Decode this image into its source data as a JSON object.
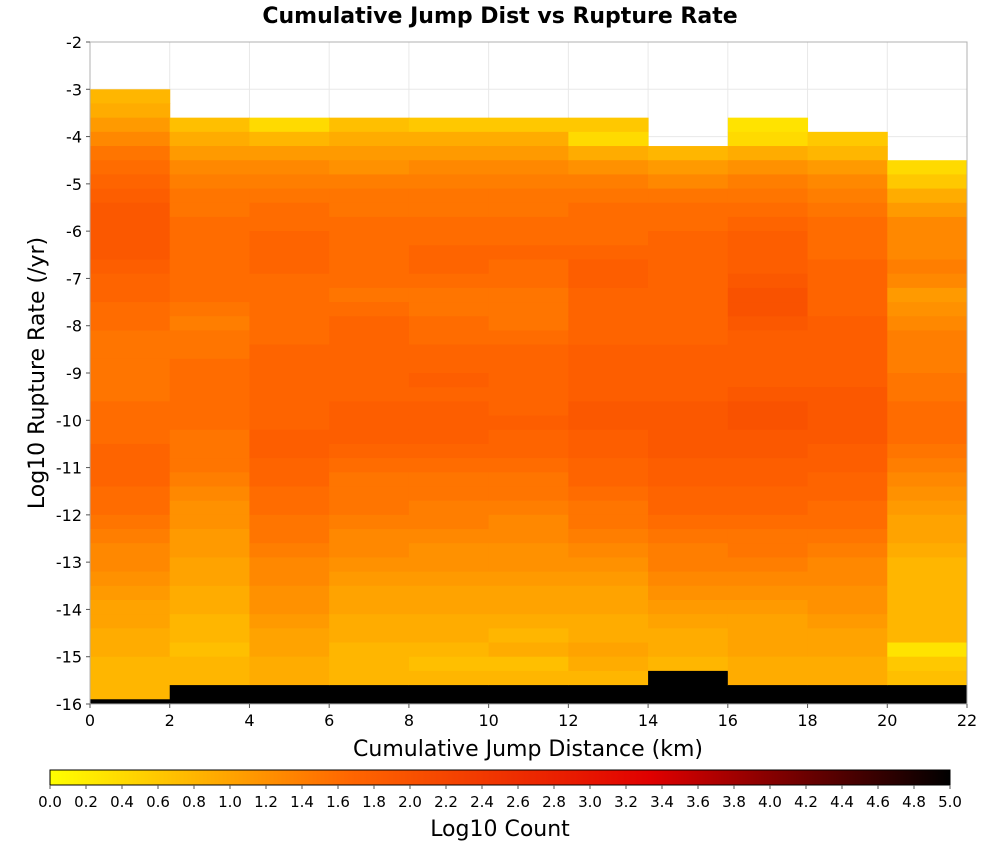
{
  "chart_data": {
    "type": "heatmap",
    "title": "Cumulative Jump Dist vs Rupture Rate",
    "xlabel": "Cumulative Jump Distance (km)",
    "ylabel": "Log10 Rupture Rate (/yr)",
    "xlim": [
      0,
      22
    ],
    "ylim": [
      -16,
      -2
    ],
    "x_ticks": [
      "0",
      "2",
      "4",
      "6",
      "8",
      "10",
      "12",
      "14",
      "16",
      "18",
      "20",
      "22"
    ],
    "y_ticks": [
      "-2",
      "-3",
      "-4",
      "-5",
      "-6",
      "-7",
      "-8",
      "-9",
      "-10",
      "-11",
      "-12",
      "-13",
      "-14",
      "-15",
      "-16"
    ],
    "grid": true,
    "x_bin_edges": [
      0,
      2,
      4,
      6,
      8,
      10,
      12,
      14,
      16,
      18,
      20,
      22
    ],
    "y_bin_width": 0.3,
    "colorbar": {
      "label": "Log10 Count",
      "range": [
        0,
        5
      ],
      "ticks": [
        "0.0",
        "0.2",
        "0.4",
        "0.6",
        "0.8",
        "1.0",
        "1.2",
        "1.4",
        "1.6",
        "1.8",
        "2.0",
        "2.2",
        "2.4",
        "2.6",
        "2.8",
        "3.0",
        "3.2",
        "3.4",
        "3.6",
        "3.8",
        "4.0",
        "4.2",
        "4.4",
        "4.6",
        "4.8",
        "5.0"
      ],
      "colormap": [
        "#ffff00",
        "#ff6600",
        "#e00000",
        "#000000"
      ]
    },
    "columns": [
      {
        "x_start": 0,
        "y_top": -3.0,
        "values": [
          0.8,
          0.9,
          1.1,
          1.3,
          1.5,
          1.6,
          1.7,
          1.8,
          1.9,
          1.9,
          1.9,
          1.9,
          1.8,
          1.7,
          1.7,
          1.6,
          1.6,
          1.5,
          1.5,
          1.5,
          1.5,
          1.5,
          1.6,
          1.6,
          1.6,
          1.7,
          1.7,
          1.7,
          1.6,
          1.6,
          1.5,
          1.4,
          1.3,
          1.3,
          1.2,
          1.1,
          1.0,
          1.0,
          0.9,
          0.9,
          0.8,
          0.8,
          0.8,
          5.0
        ]
      },
      {
        "x_start": 2,
        "y_top": -3.6,
        "values": [
          0.7,
          0.9,
          1.1,
          1.3,
          1.4,
          1.5,
          1.5,
          1.6,
          1.6,
          1.6,
          1.6,
          1.6,
          1.6,
          1.5,
          1.4,
          1.5,
          1.5,
          1.6,
          1.6,
          1.6,
          1.6,
          1.6,
          1.5,
          1.5,
          1.5,
          1.4,
          1.3,
          1.2,
          1.2,
          1.1,
          1.1,
          1.0,
          1.0,
          0.9,
          0.9,
          0.8,
          0.8,
          0.7,
          0.8,
          0.8,
          5.0
        ]
      },
      {
        "x_start": 4,
        "y_top": -3.6,
        "values": [
          0.4,
          0.8,
          1.1,
          1.3,
          1.4,
          1.5,
          1.6,
          1.6,
          1.7,
          1.7,
          1.7,
          1.6,
          1.6,
          1.6,
          1.6,
          1.6,
          1.7,
          1.7,
          1.7,
          1.7,
          1.7,
          1.7,
          1.8,
          1.8,
          1.7,
          1.7,
          1.6,
          1.6,
          1.5,
          1.5,
          1.4,
          1.3,
          1.3,
          1.2,
          1.2,
          1.1,
          1.0,
          1.0,
          0.9,
          0.9,
          5.0
        ]
      },
      {
        "x_start": 6,
        "y_top": -3.6,
        "values": [
          0.7,
          0.9,
          1.1,
          1.2,
          1.4,
          1.5,
          1.5,
          1.6,
          1.6,
          1.6,
          1.6,
          1.6,
          1.5,
          1.6,
          1.7,
          1.7,
          1.7,
          1.7,
          1.7,
          1.7,
          1.8,
          1.8,
          1.8,
          1.7,
          1.6,
          1.5,
          1.5,
          1.5,
          1.4,
          1.3,
          1.3,
          1.2,
          1.1,
          1.0,
          1.0,
          0.9,
          0.9,
          0.8,
          0.8,
          0.8,
          5.0
        ]
      },
      {
        "x_start": 8,
        "y_top": -3.6,
        "values": [
          0.6,
          0.9,
          1.1,
          1.3,
          1.4,
          1.5,
          1.5,
          1.6,
          1.6,
          1.7,
          1.7,
          1.6,
          1.5,
          1.5,
          1.6,
          1.6,
          1.7,
          1.7,
          1.8,
          1.7,
          1.8,
          1.8,
          1.8,
          1.7,
          1.6,
          1.5,
          1.5,
          1.4,
          1.4,
          1.3,
          1.2,
          1.2,
          1.1,
          1.0,
          1.0,
          0.9,
          0.9,
          0.8,
          0.7,
          0.8,
          5.0
        ]
      },
      {
        "x_start": 10,
        "y_top": -3.6,
        "values": [
          0.6,
          0.9,
          1.1,
          1.3,
          1.4,
          1.5,
          1.5,
          1.6,
          1.6,
          1.7,
          1.6,
          1.6,
          1.5,
          1.5,
          1.5,
          1.6,
          1.7,
          1.7,
          1.7,
          1.7,
          1.7,
          1.8,
          1.7,
          1.7,
          1.6,
          1.5,
          1.5,
          1.4,
          1.3,
          1.3,
          1.2,
          1.2,
          1.1,
          1.0,
          1.0,
          0.9,
          0.8,
          0.9,
          0.7,
          0.8,
          5.0
        ]
      },
      {
        "x_start": 12,
        "y_top": -3.6,
        "values": [
          0.6,
          0.4,
          0.9,
          1.2,
          1.4,
          1.5,
          1.6,
          1.6,
          1.6,
          1.7,
          1.8,
          1.8,
          1.7,
          1.7,
          1.7,
          1.7,
          1.8,
          1.8,
          1.8,
          1.8,
          1.9,
          1.9,
          1.8,
          1.8,
          1.7,
          1.7,
          1.6,
          1.5,
          1.5,
          1.4,
          1.3,
          1.2,
          1.1,
          1.0,
          1.0,
          0.9,
          0.9,
          1.0,
          0.9,
          0.8,
          5.0
        ]
      },
      {
        "x_start": 14,
        "y_top": -4.2,
        "values": [
          0.8,
          1.1,
          1.3,
          1.5,
          1.6,
          1.6,
          1.7,
          1.7,
          1.7,
          1.7,
          1.7,
          1.7,
          1.7,
          1.7,
          1.8,
          1.8,
          1.8,
          1.8,
          1.9,
          1.9,
          1.9,
          1.9,
          1.8,
          1.8,
          1.7,
          1.7,
          1.6,
          1.5,
          1.4,
          1.4,
          1.3,
          1.2,
          1.1,
          1.0,
          0.9,
          0.9,
          0.8,
          5.0
        ]
      },
      {
        "x_start": 16,
        "y_top": -3.6,
        "values": [
          0.3,
          0.4,
          0.9,
          1.2,
          1.4,
          1.5,
          1.6,
          1.7,
          1.8,
          1.8,
          1.8,
          1.9,
          2.0,
          2.0,
          1.9,
          1.8,
          1.8,
          1.8,
          1.8,
          1.9,
          2.0,
          2.0,
          1.9,
          1.9,
          1.8,
          1.8,
          1.7,
          1.7,
          1.6,
          1.5,
          1.5,
          1.4,
          1.3,
          1.2,
          1.1,
          1.0,
          1.0,
          1.0,
          0.9,
          0.9,
          5.0
        ]
      },
      {
        "x_start": 18,
        "y_top": -3.9,
        "values": [
          0.6,
          0.8,
          1.1,
          1.3,
          1.4,
          1.5,
          1.6,
          1.6,
          1.6,
          1.7,
          1.7,
          1.7,
          1.7,
          1.8,
          1.8,
          1.8,
          1.8,
          1.8,
          1.9,
          1.9,
          1.9,
          1.9,
          1.8,
          1.8,
          1.7,
          1.7,
          1.6,
          1.6,
          1.5,
          1.4,
          1.3,
          1.3,
          1.2,
          1.2,
          1.1,
          1.0,
          1.0,
          0.9,
          0.9,
          5.0
        ]
      },
      {
        "x_start": 20,
        "y_top": -4.5,
        "values": [
          0.4,
          0.6,
          0.9,
          1.1,
          1.3,
          1.3,
          1.3,
          1.4,
          1.3,
          1.1,
          1.2,
          1.3,
          1.4,
          1.4,
          1.4,
          1.5,
          1.5,
          1.6,
          1.6,
          1.6,
          1.5,
          1.4,
          1.3,
          1.2,
          1.1,
          1.0,
          1.0,
          0.9,
          0.8,
          0.8,
          0.8,
          0.8,
          0.8,
          0.8,
          0.3,
          0.6,
          0.7,
          5.0
        ]
      }
    ]
  }
}
